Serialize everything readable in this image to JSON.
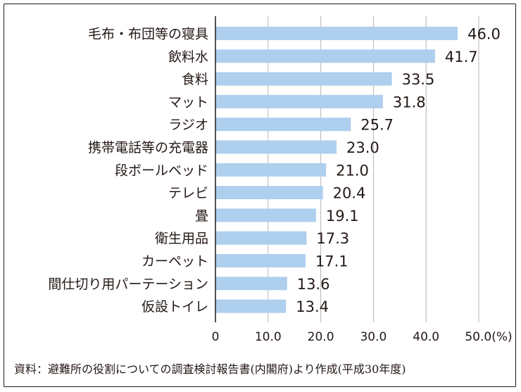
{
  "chart_data": {
    "type": "bar",
    "orientation": "horizontal",
    "categories": [
      "毛布・布団等の寝具",
      "飲料水",
      "食料",
      "マット",
      "ラジオ",
      "携帯電話等の充電器",
      "段ボールベッド",
      "テレビ",
      "畳",
      "衛生用品",
      "カーペット",
      "間仕切り用パーテーション",
      "仮設トイレ"
    ],
    "values": [
      46.0,
      41.7,
      33.5,
      31.8,
      25.7,
      23.0,
      21.0,
      20.4,
      19.1,
      17.3,
      17.1,
      13.6,
      13.4
    ],
    "value_labels": [
      "46.0",
      "41.7",
      "33.5",
      "31.8",
      "25.7",
      "23.0",
      "21.0",
      "20.4",
      "19.1",
      "17.3",
      "17.1",
      "13.6",
      "13.4"
    ],
    "xlim": [
      0,
      50
    ],
    "xticks": [
      0,
      10,
      20,
      30,
      40,
      50
    ],
    "xtick_labels": [
      "0",
      "10.0",
      "20.0",
      "30.0",
      "40.0",
      "50.0(%)"
    ],
    "grid": true,
    "bar_color": "#aecfee",
    "grid_color": "#b5b5b6",
    "source": "資料：避難所の役割についての調査検討報告書(内閣府)より作成(平成30年度)"
  }
}
